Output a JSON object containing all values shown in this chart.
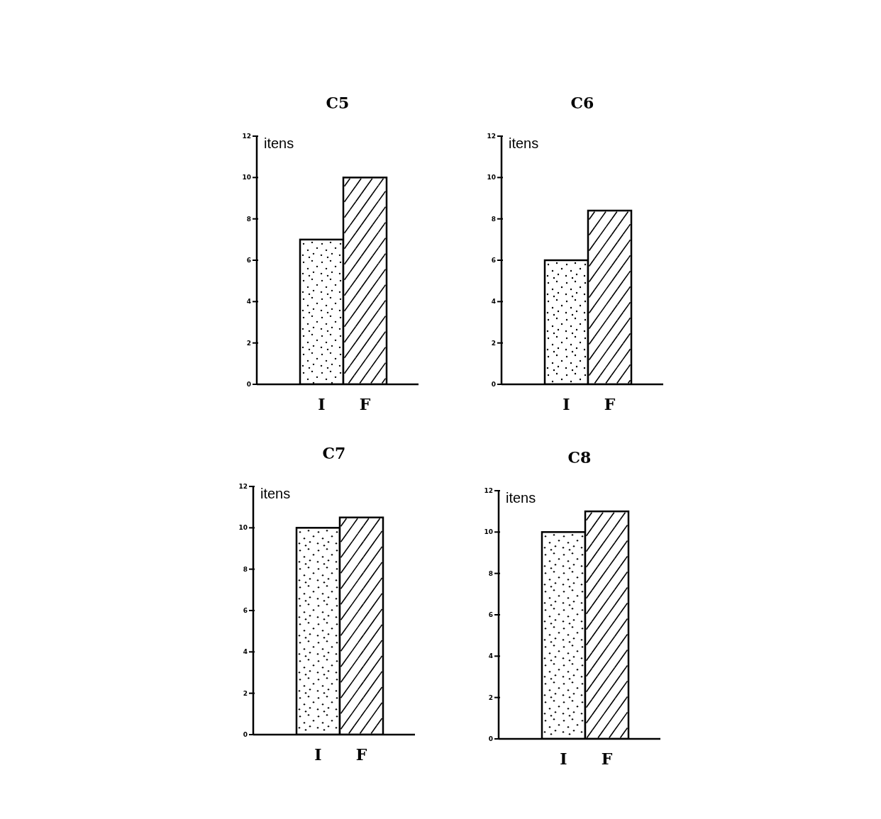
{
  "chart_data": [
    {
      "type": "bar",
      "title": "C5",
      "ylabel": "itens",
      "categories": [
        "I",
        "F"
      ],
      "values": [
        7,
        10
      ],
      "colors": [
        "#ffffff",
        "#ffffff"
      ],
      "ylim": [
        0,
        12
      ],
      "yticks": [
        0,
        2,
        4,
        6,
        8,
        10,
        12
      ],
      "grid": false,
      "legend": false
    },
    {
      "type": "bar",
      "title": "C6",
      "ylabel": "itens",
      "categories": [
        "I",
        "F"
      ],
      "values": [
        6,
        8.4
      ],
      "colors": [
        "#ffffff",
        "#ffffff"
      ],
      "ylim": [
        0,
        12
      ],
      "yticks": [
        0,
        2,
        4,
        6,
        8,
        10,
        12
      ],
      "grid": false,
      "legend": false
    },
    {
      "type": "bar",
      "title": "C7",
      "ylabel": "itens",
      "categories": [
        "I",
        "F"
      ],
      "values": [
        10,
        10.5
      ],
      "colors": [
        "#ffffff",
        "#ffffff"
      ],
      "ylim": [
        0,
        12
      ],
      "yticks": [
        0,
        2,
        4,
        6,
        8,
        10,
        12
      ],
      "grid": false,
      "legend": false
    },
    {
      "type": "bar",
      "title": "C8",
      "ylabel": "itens",
      "categories": [
        "I",
        "F"
      ],
      "values": [
        10,
        11
      ],
      "colors": [
        "#ffffff",
        "#ffffff"
      ],
      "ylim": [
        0,
        12
      ],
      "yticks": [
        0,
        2,
        4,
        6,
        8,
        10,
        12
      ],
      "grid": false,
      "legend": false
    }
  ]
}
